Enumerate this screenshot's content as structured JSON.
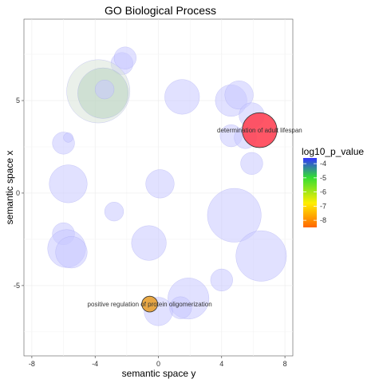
{
  "chart_data": {
    "type": "scatter",
    "title": "GO Biological Process",
    "xlabel": "semantic space y",
    "ylabel": "semantic space x",
    "xlim": [
      -8.5,
      8.5
    ],
    "ylim": [
      -8.8,
      9.4
    ],
    "xticks": [
      -8,
      -4,
      0,
      4,
      8
    ],
    "yticks": [
      5,
      0,
      -5
    ],
    "tick_labels_x": [
      "-8",
      "-4",
      "0",
      "4",
      "8"
    ],
    "tick_labels_y": [
      "5",
      "0",
      "-5"
    ],
    "grid": true,
    "legend": {
      "title": "log10_p_value",
      "position": "right",
      "labels": [
        "-4",
        "-5",
        "-6",
        "-7",
        "-8"
      ],
      "values": [
        -4,
        -5,
        -6,
        -7,
        -8
      ],
      "range": [
        -3.6,
        -8.5
      ],
      "colors": [
        "#3333ff",
        "#33dd33",
        "#ffee00",
        "#ff6600"
      ]
    },
    "points": [
      {
        "x": -2.3,
        "y": 7.0,
        "size": 0.35,
        "log10_p": -3.8
      },
      {
        "x": -2.1,
        "y": 7.3,
        "size": 0.35,
        "log10_p": -3.8
      },
      {
        "x": -3.8,
        "y": 5.5,
        "size": 1.0,
        "log10_p": -3.8,
        "alpha_color": "#d8e4d8"
      },
      {
        "x": -3.5,
        "y": 5.4,
        "size": 0.8,
        "log10_p": -4.2,
        "alpha_color": "#b8d4c0"
      },
      {
        "x": -3.4,
        "y": 5.6,
        "size": 0.3,
        "log10_p": -4.0
      },
      {
        "x": 1.5,
        "y": 5.2,
        "size": 0.55,
        "log10_p": -3.8
      },
      {
        "x": 4.6,
        "y": 5.0,
        "size": 0.5,
        "log10_p": -3.8
      },
      {
        "x": 5.1,
        "y": 5.3,
        "size": 0.45,
        "log10_p": -3.8
      },
      {
        "x": 5.9,
        "y": 4.2,
        "size": 0.4,
        "log10_p": -3.8
      },
      {
        "x": 4.6,
        "y": 3.1,
        "size": 0.35,
        "log10_p": -3.8
      },
      {
        "x": 5.5,
        "y": 3.0,
        "size": 0.35,
        "log10_p": -3.8
      },
      {
        "x": 5.9,
        "y": 1.6,
        "size": 0.35,
        "log10_p": -3.8
      },
      {
        "x": -6.0,
        "y": 2.7,
        "size": 0.35,
        "log10_p": -3.8
      },
      {
        "x": -5.7,
        "y": 3.0,
        "size": 0.15,
        "log10_p": -3.8
      },
      {
        "x": -5.7,
        "y": 0.5,
        "size": 0.6,
        "log10_p": -3.8
      },
      {
        "x": 0.1,
        "y": 0.5,
        "size": 0.45,
        "log10_p": -3.8
      },
      {
        "x": -2.8,
        "y": -1.0,
        "size": 0.3,
        "log10_p": -3.8
      },
      {
        "x": 4.8,
        "y": -1.2,
        "size": 0.85,
        "log10_p": -3.8
      },
      {
        "x": -6.0,
        "y": -2.2,
        "size": 0.35,
        "log10_p": -3.8
      },
      {
        "x": -5.8,
        "y": -3.0,
        "size": 0.6,
        "log10_p": -3.8
      },
      {
        "x": -5.5,
        "y": -3.2,
        "size": 0.5,
        "log10_p": -3.8
      },
      {
        "x": -0.6,
        "y": -2.7,
        "size": 0.55,
        "log10_p": -3.8
      },
      {
        "x": 6.5,
        "y": -3.4,
        "size": 0.8,
        "log10_p": -3.8
      },
      {
        "x": 4.0,
        "y": -4.7,
        "size": 0.35,
        "log10_p": -3.8
      },
      {
        "x": 1.9,
        "y": -5.7,
        "size": 0.65,
        "log10_p": -3.8
      },
      {
        "x": 1.4,
        "y": -6.2,
        "size": 0.35,
        "log10_p": -3.8
      },
      {
        "x": 0.0,
        "y": -6.4,
        "size": 0.45,
        "log10_p": -3.8
      },
      {
        "x": 6.4,
        "y": 3.4,
        "size": 0.55,
        "log10_p": -8.3,
        "label": "determination of adult lifespan",
        "highlight": true,
        "color": "#ff4455"
      },
      {
        "x": -0.55,
        "y": -6.0,
        "size": 0.25,
        "log10_p": -8.0,
        "label": "positive regulation of protein oligomerization",
        "highlight": true,
        "color": "#e8a030"
      }
    ]
  }
}
